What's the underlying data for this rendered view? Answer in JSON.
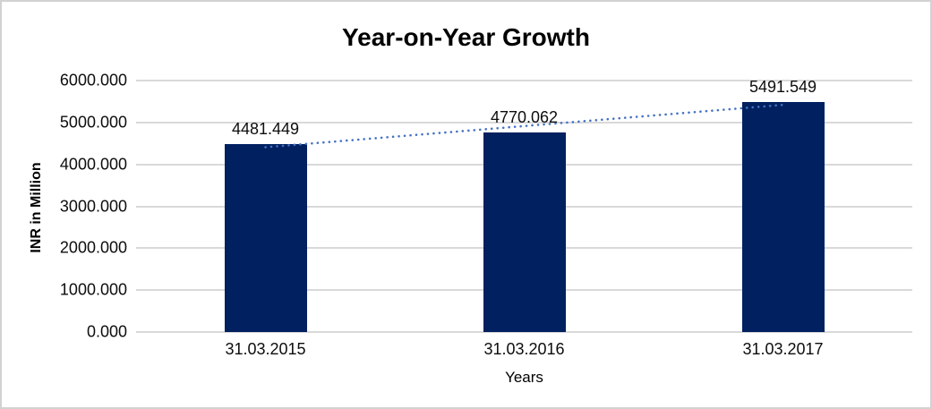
{
  "chart_data": {
    "type": "bar",
    "title": "Year-on-Year Growth",
    "categories": [
      "31.03.2015",
      "31.03.2016",
      "31.03.2017"
    ],
    "values": [
      4481.449,
      4770.062,
      5491.549
    ],
    "data_labels": [
      "4481.449",
      "4770.062",
      "5491.549"
    ],
    "xlabel": "Years",
    "ylabel": "INR in Million",
    "ylim": [
      0,
      6000
    ],
    "ytick_labels": [
      "0.000",
      "1000.000",
      "2000.000",
      "3000.000",
      "4000.000",
      "5000.000",
      "6000.000"
    ],
    "grid": true,
    "legend": "none",
    "trendline": {
      "type": "linear",
      "style": "dotted"
    },
    "colors": {
      "bar": "#002060",
      "trendline": "#4472C4",
      "gridline": "#d9d9d9",
      "title_text": "#000000",
      "tick_text": "#0d0d0d"
    }
  }
}
